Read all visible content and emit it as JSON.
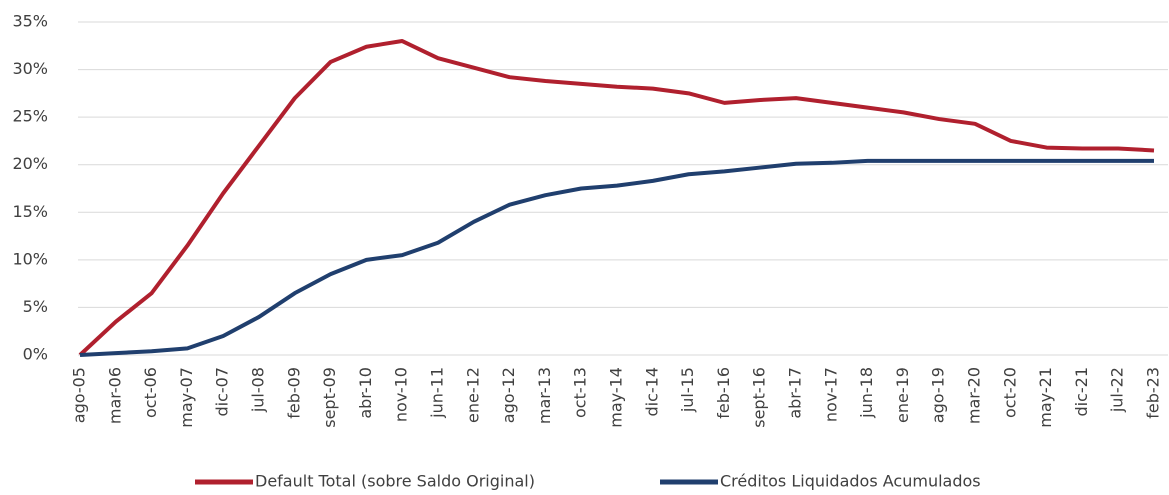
{
  "chart_data": {
    "type": "line",
    "categories": [
      "ago-05",
      "mar-06",
      "oct-06",
      "may-07",
      "dic-07",
      "jul-08",
      "feb-09",
      "sept-09",
      "abr-10",
      "nov-10",
      "jun-11",
      "ene-12",
      "ago-12",
      "mar-13",
      "oct-13",
      "may-14",
      "dic-14",
      "jul-15",
      "feb-16",
      "sept-16",
      "abr-17",
      "nov-17",
      "jun-18",
      "ene-19",
      "ago-19",
      "mar-20",
      "oct-20",
      "may-21",
      "dic-21",
      "jul-22",
      "feb-23"
    ],
    "series": [
      {
        "name": "Default Total (sobre Saldo Original)",
        "color": "#b0202e",
        "values": [
          0,
          3.5,
          6.5,
          11.5,
          17,
          22,
          27,
          30.8,
          32.4,
          33,
          31.2,
          30.2,
          29.2,
          28.8,
          28.5,
          28.2,
          28,
          27.5,
          26.5,
          26.8,
          27,
          26.5,
          26,
          25.5,
          24.8,
          24.3,
          22.5,
          21.8,
          21.7,
          21.7,
          21.5
        ]
      },
      {
        "name": "Créditos Liquidados Acumulados",
        "color": "#203f6e",
        "values": [
          0,
          0.2,
          0.4,
          0.7,
          2,
          4,
          6.5,
          8.5,
          10,
          10.5,
          11.8,
          14,
          15.8,
          16.8,
          17.5,
          17.8,
          18.3,
          19,
          19.3,
          19.7,
          20.1,
          20.2,
          20.4,
          20.4,
          20.4,
          20.4,
          20.4,
          20.4,
          20.4,
          20.4,
          20.4
        ]
      }
    ],
    "ylim": [
      0,
      35
    ],
    "yticks": [
      {
        "value": 0,
        "label": "0%"
      },
      {
        "value": 5,
        "label": "5%"
      },
      {
        "value": 10,
        "label": "10%"
      },
      {
        "value": 15,
        "label": "15%"
      },
      {
        "value": 20,
        "label": "20%"
      },
      {
        "value": 25,
        "label": "25%"
      },
      {
        "value": 30,
        "label": "30%"
      },
      {
        "value": 35,
        "label": "35%"
      }
    ],
    "grid": true,
    "legend": "bottom"
  }
}
